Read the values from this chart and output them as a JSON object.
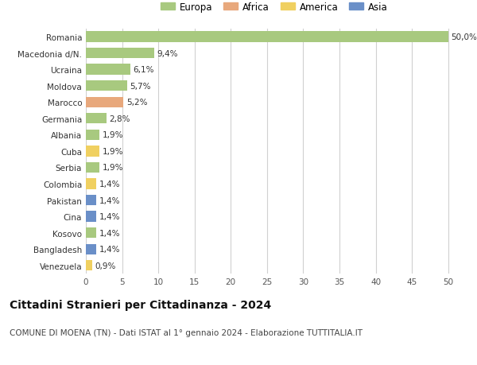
{
  "countries": [
    "Romania",
    "Macedonia d/N.",
    "Ucraina",
    "Moldova",
    "Marocco",
    "Germania",
    "Albania",
    "Cuba",
    "Serbia",
    "Colombia",
    "Pakistan",
    "Cina",
    "Kosovo",
    "Bangladesh",
    "Venezuela"
  ],
  "values": [
    50.0,
    9.4,
    6.1,
    5.7,
    5.2,
    2.8,
    1.9,
    1.9,
    1.9,
    1.4,
    1.4,
    1.4,
    1.4,
    1.4,
    0.9
  ],
  "labels": [
    "50,0%",
    "9,4%",
    "6,1%",
    "5,7%",
    "5,2%",
    "2,8%",
    "1,9%",
    "1,9%",
    "1,9%",
    "1,4%",
    "1,4%",
    "1,4%",
    "1,4%",
    "1,4%",
    "0,9%"
  ],
  "continents": [
    "Europa",
    "Europa",
    "Europa",
    "Europa",
    "Africa",
    "Europa",
    "Europa",
    "America",
    "Europa",
    "America",
    "Asia",
    "Asia",
    "Europa",
    "Asia",
    "America"
  ],
  "colors": {
    "Europa": "#a8c97f",
    "Africa": "#e8a87c",
    "America": "#f0d060",
    "Asia": "#6a8fc8"
  },
  "legend_order": [
    "Europa",
    "Africa",
    "America",
    "Asia"
  ],
  "legend_colors": [
    "#a8c97f",
    "#e8a87c",
    "#f0d060",
    "#6a8fc8"
  ],
  "xlim": [
    0,
    52
  ],
  "xticks": [
    0,
    5,
    10,
    15,
    20,
    25,
    30,
    35,
    40,
    45,
    50
  ],
  "title": "Cittadini Stranieri per Cittadinanza - 2024",
  "subtitle": "COMUNE DI MOENA (TN) - Dati ISTAT al 1° gennaio 2024 - Elaborazione TUTTITALIA.IT",
  "background_color": "#ffffff",
  "grid_color": "#d0d0d0",
  "bar_height": 0.65,
  "title_fontsize": 10,
  "subtitle_fontsize": 7.5,
  "label_fontsize": 7.5,
  "tick_fontsize": 7.5,
  "legend_fontsize": 8.5
}
